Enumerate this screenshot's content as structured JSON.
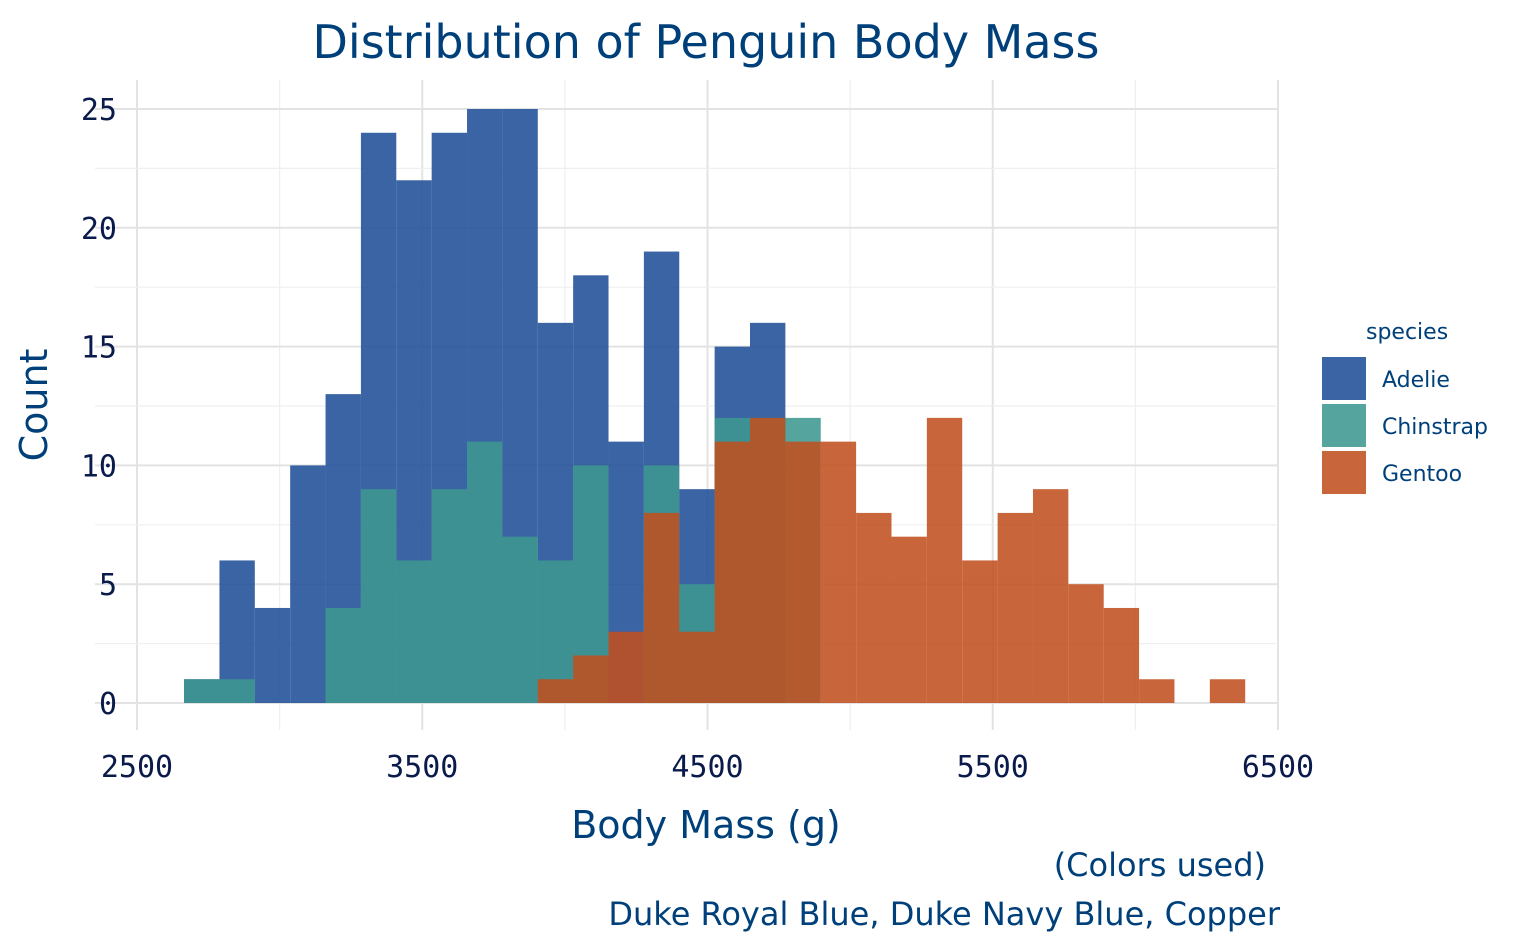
{
  "chart_data": {
    "type": "bar",
    "stacked": false,
    "title": "Distribution of Penguin Body Mass",
    "xlabel": "Body Mass (g)",
    "ylabel": "Count",
    "caption_line1": "(Colors used)",
    "caption_line2": "Duke Royal Blue, Duke Navy Blue, Copper",
    "xlim": [
      2500,
      6500
    ],
    "ylim": [
      0,
      25
    ],
    "x_ticks": [
      "2500",
      "3500",
      "4500",
      "5500",
      "6500"
    ],
    "y_ticks": [
      "0",
      "5",
      "10",
      "15",
      "20",
      "25"
    ],
    "grid": true,
    "legend_title": "species",
    "legend_position": "right",
    "bin_width": 124,
    "series": [
      {
        "name": "Adelie",
        "color": "#1f4e96",
        "bins": [
          {
            "x0": 2665,
            "count": 1
          },
          {
            "x0": 2789,
            "count": 6
          },
          {
            "x0": 2913,
            "count": 4
          },
          {
            "x0": 3037,
            "count": 10
          },
          {
            "x0": 3161,
            "count": 13
          },
          {
            "x0": 3285,
            "count": 24
          },
          {
            "x0": 3409,
            "count": 22
          },
          {
            "x0": 3533,
            "count": 24
          },
          {
            "x0": 3657,
            "count": 25
          },
          {
            "x0": 3781,
            "count": 25
          },
          {
            "x0": 3905,
            "count": 16
          },
          {
            "x0": 4029,
            "count": 18
          },
          {
            "x0": 4153,
            "count": 11
          },
          {
            "x0": 4277,
            "count": 19
          },
          {
            "x0": 4401,
            "count": 9
          },
          {
            "x0": 4525,
            "count": 15
          },
          {
            "x0": 4649,
            "count": 16
          }
        ]
      },
      {
        "name": "Chinstrap",
        "color": "#3f9791",
        "bins": [
          {
            "x0": 2665,
            "count": 1
          },
          {
            "x0": 2789,
            "count": 1
          },
          {
            "x0": 3161,
            "count": 4
          },
          {
            "x0": 3285,
            "count": 9
          },
          {
            "x0": 3409,
            "count": 6
          },
          {
            "x0": 3533,
            "count": 9
          },
          {
            "x0": 3657,
            "count": 11
          },
          {
            "x0": 3781,
            "count": 7
          },
          {
            "x0": 3905,
            "count": 6
          },
          {
            "x0": 4029,
            "count": 10
          },
          {
            "x0": 4277,
            "count": 10
          },
          {
            "x0": 4401,
            "count": 5
          },
          {
            "x0": 4525,
            "count": 12
          },
          {
            "x0": 4649,
            "count": 12
          },
          {
            "x0": 4773,
            "count": 12
          }
        ]
      },
      {
        "name": "Gentoo",
        "color": "#c0501f",
        "bins": [
          {
            "x0": 3905,
            "count": 1
          },
          {
            "x0": 4029,
            "count": 2
          },
          {
            "x0": 4153,
            "count": 3
          },
          {
            "x0": 4277,
            "count": 8
          },
          {
            "x0": 4401,
            "count": 3
          },
          {
            "x0": 4525,
            "count": 11
          },
          {
            "x0": 4649,
            "count": 12
          },
          {
            "x0": 4773,
            "count": 11
          },
          {
            "x0": 4897,
            "count": 11
          },
          {
            "x0": 5021,
            "count": 8
          },
          {
            "x0": 5145,
            "count": 7
          },
          {
            "x0": 5269,
            "count": 12
          },
          {
            "x0": 5393,
            "count": 6
          },
          {
            "x0": 5517,
            "count": 8
          },
          {
            "x0": 5641,
            "count": 9
          },
          {
            "x0": 5765,
            "count": 5
          },
          {
            "x0": 5889,
            "count": 4
          },
          {
            "x0": 6013,
            "count": 1
          },
          {
            "x0": 6261,
            "count": 1
          }
        ]
      }
    ]
  }
}
